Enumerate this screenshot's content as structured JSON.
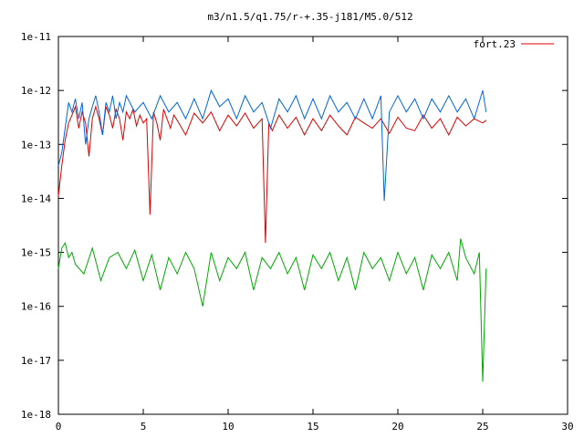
{
  "chart_data": {
    "type": "line",
    "title": "m3/n1.5/q1.75/r-+.35-j181/M5.0/512",
    "xlabel": "",
    "ylabel": "",
    "xlim": [
      0,
      30
    ],
    "ylim": [
      1e-18,
      1e-11
    ],
    "yscale": "log",
    "grid": false,
    "legend": {
      "placement": "top-right",
      "entries": [
        "fort.23"
      ]
    },
    "x_ticks": [
      "0",
      "5",
      "10",
      "15",
      "20",
      "25",
      "30"
    ],
    "y_ticks": [
      "1e-18",
      "1e-17",
      "1e-16",
      "1e-15",
      "1e-14",
      "1e-13",
      "1e-12",
      "1e-11"
    ],
    "series": [
      {
        "name": "fort.23",
        "color": "#dd0000",
        "x": [
          0,
          0.2,
          0.4,
          0.6,
          0.8,
          1.0,
          1.2,
          1.4,
          1.6,
          1.8,
          2.0,
          2.2,
          2.4,
          2.6,
          2.8,
          3.0,
          3.2,
          3.4,
          3.6,
          3.8,
          4.0,
          4.2,
          4.4,
          4.6,
          4.8,
          5.0,
          5.2,
          5.4,
          5.6,
          5.8,
          6.0,
          6.2,
          6.4,
          6.6,
          6.8,
          7.0,
          7.5,
          8.0,
          8.5,
          9.0,
          9.5,
          10.0,
          10.5,
          11.0,
          11.5,
          12.0,
          12.2,
          12.4,
          12.6,
          13.0,
          13.5,
          14.0,
          14.5,
          15.0,
          15.5,
          16.0,
          16.5,
          17.0,
          17.5,
          18.0,
          18.5,
          19.0,
          19.5,
          20.0,
          20.5,
          21.0,
          21.5,
          22.0,
          22.5,
          23.0,
          23.5,
          24.0,
          24.5,
          25.0,
          25.2
        ],
        "y": [
          1.1e-14,
          4e-14,
          1.2e-13,
          2.5e-13,
          3.5e-13,
          5e-13,
          2e-13,
          4e-13,
          2.5e-13,
          6e-14,
          3e-13,
          5e-13,
          3e-13,
          1.5e-13,
          5e-13,
          3.5e-13,
          2e-13,
          4.5e-13,
          3e-13,
          1.2e-13,
          4e-13,
          3e-13,
          4.5e-13,
          2.2e-13,
          3.5e-13,
          2.5e-13,
          3e-13,
          5e-15,
          4e-13,
          2.5e-13,
          1.2e-13,
          4.5e-13,
          3e-13,
          2e-13,
          3.5e-13,
          2.8e-13,
          1.5e-13,
          3.8e-13,
          2.5e-13,
          4e-13,
          1.8e-13,
          3.5e-13,
          2.2e-13,
          3.8e-13,
          2e-13,
          3e-13,
          1.5e-15,
          2.5e-13,
          1.8e-13,
          3.5e-13,
          2e-13,
          3.2e-13,
          1.5e-13,
          3e-13,
          1.8e-13,
          3.5e-13,
          2.2e-13,
          1.5e-13,
          3.2e-13,
          2.5e-13,
          2e-13,
          3e-13,
          1.6e-13,
          3.2e-13,
          2e-13,
          1.8e-13,
          3.5e-13,
          2e-13,
          3e-13,
          1.5e-13,
          3.2e-13,
          2.2e-13,
          3e-13,
          2.5e-13,
          2.8e-13
        ]
      },
      {
        "name": "",
        "color": "#0066dd",
        "x": [
          0,
          0.2,
          0.4,
          0.6,
          0.8,
          1.0,
          1.2,
          1.4,
          1.6,
          1.8,
          2.0,
          2.2,
          2.4,
          2.6,
          2.8,
          3.0,
          3.2,
          3.4,
          3.6,
          3.8,
          4.0,
          4.5,
          5.0,
          5.5,
          6.0,
          6.5,
          7.0,
          7.5,
          8.0,
          8.5,
          9.0,
          9.5,
          10.0,
          10.5,
          11.0,
          11.5,
          12.0,
          12.5,
          13.0,
          13.5,
          14.0,
          14.5,
          15.0,
          15.5,
          16.0,
          16.5,
          17.0,
          17.5,
          18.0,
          18.5,
          19.0,
          19.2,
          19.5,
          20.0,
          20.5,
          21.0,
          21.5,
          22.0,
          22.5,
          23.0,
          23.5,
          24.0,
          24.5,
          25.0,
          25.2
        ],
        "y": [
          4e-14,
          7e-14,
          2e-13,
          6e-13,
          4e-13,
          7e-13,
          3e-13,
          6e-13,
          1e-13,
          3e-13,
          5e-13,
          8e-13,
          4e-13,
          1.5e-13,
          6e-13,
          4e-13,
          8e-13,
          3e-13,
          6e-13,
          4e-13,
          8e-13,
          4e-13,
          6e-13,
          3e-13,
          8e-13,
          4e-13,
          6e-13,
          3e-13,
          7e-13,
          3e-13,
          1e-12,
          5e-13,
          7e-13,
          3e-13,
          8e-13,
          4e-13,
          6e-13,
          2e-13,
          7e-13,
          4e-13,
          8e-13,
          3e-13,
          7e-13,
          3e-13,
          8e-13,
          4e-13,
          6e-13,
          3e-13,
          7e-13,
          3e-13,
          8e-13,
          9e-15,
          4e-13,
          8e-13,
          4e-13,
          7e-13,
          3e-13,
          7e-13,
          4e-13,
          8e-13,
          4e-13,
          7e-13,
          3e-13,
          1e-12,
          4e-13
        ]
      },
      {
        "name": "",
        "color": "#00aa00",
        "x": [
          0,
          0.2,
          0.4,
          0.6,
          0.8,
          1.0,
          1.5,
          2.0,
          2.5,
          3.0,
          3.5,
          4.0,
          4.5,
          5.0,
          5.5,
          6.0,
          6.5,
          7.0,
          7.5,
          8.0,
          8.5,
          9.0,
          9.5,
          10.0,
          10.5,
          11.0,
          11.5,
          12.0,
          12.5,
          13.0,
          13.5,
          14.0,
          14.5,
          15.0,
          15.5,
          16.0,
          16.5,
          17.0,
          17.5,
          18.0,
          18.5,
          19.0,
          19.5,
          20.0,
          20.5,
          21.0,
          21.5,
          22.0,
          22.5,
          23.0,
          23.5,
          23.7,
          24.0,
          24.5,
          24.8,
          25.0,
          25.2
        ],
        "y": [
          5e-16,
          1.2e-15,
          1.5e-15,
          8e-16,
          1e-15,
          6e-16,
          4e-16,
          1.2e-15,
          3e-16,
          8e-16,
          1e-15,
          5e-16,
          1.1e-15,
          3e-16,
          9e-16,
          2e-16,
          8e-16,
          4e-16,
          1e-15,
          5e-16,
          1e-16,
          1e-15,
          3e-16,
          8e-16,
          5e-16,
          1e-15,
          2e-16,
          8e-16,
          5e-16,
          1e-15,
          4e-16,
          8e-16,
          2e-16,
          9e-16,
          5e-16,
          1e-15,
          3e-16,
          8e-16,
          2e-16,
          1e-15,
          5e-16,
          8e-16,
          3e-16,
          1e-15,
          4e-16,
          8e-16,
          2e-16,
          9e-16,
          5e-16,
          1e-15,
          3e-16,
          1.8e-15,
          8e-16,
          4e-16,
          1e-15,
          4e-18,
          5e-16
        ]
      }
    ]
  }
}
